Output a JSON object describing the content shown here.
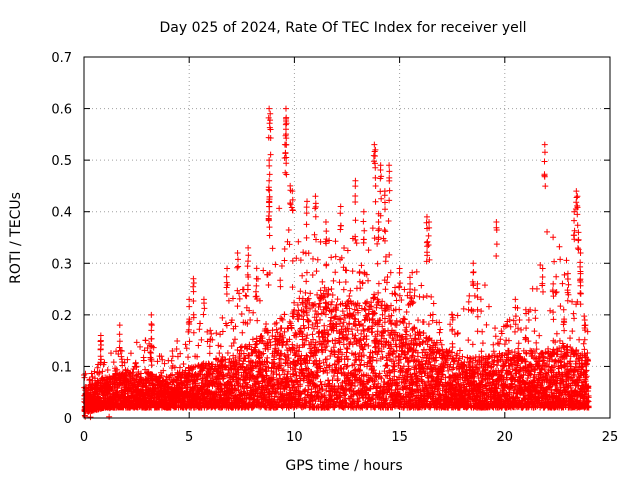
{
  "chart_data": {
    "type": "scatter",
    "title": "Day 025 of 2024, Rate Of TEC Index for receiver yell",
    "xlabel": "GPS time / hours",
    "ylabel": "ROTI / TECUs",
    "xlim": [
      0,
      25
    ],
    "ylim": [
      0,
      0.7
    ],
    "x_ticks": [
      0,
      5,
      10,
      15,
      20,
      25
    ],
    "x_tick_labels": [
      "0",
      "5",
      "10",
      "15",
      "20",
      "25"
    ],
    "y_ticks": [
      0,
      0.1,
      0.2,
      0.3,
      0.4,
      0.5,
      0.6,
      0.7
    ],
    "y_tick_labels": [
      "0",
      "0.1",
      "0.2",
      "0.3",
      "0.4",
      "0.5",
      "0.6",
      "0.7"
    ],
    "grid": true,
    "marker": "plus",
    "marker_color": "#ff0000",
    "series": [
      {
        "name": "ROTI",
        "sample_points": [
          {
            "x": 0.05,
            "y": 0.02
          },
          {
            "x": 0.3,
            "y": 0.06
          },
          {
            "x": 0.5,
            "y": 0.09
          },
          {
            "x": 0.8,
            "y": 0.16
          },
          {
            "x": 0.8,
            "y": 0.15
          },
          {
            "x": 1.2,
            "y": 0.08
          },
          {
            "x": 1.7,
            "y": 0.18
          },
          {
            "x": 1.8,
            "y": 0.13
          },
          {
            "x": 2.5,
            "y": 0.1
          },
          {
            "x": 3.2,
            "y": 0.2
          },
          {
            "x": 3.2,
            "y": 0.17
          },
          {
            "x": 4.2,
            "y": 0.13
          },
          {
            "x": 5.0,
            "y": 0.23
          },
          {
            "x": 5.2,
            "y": 0.27
          },
          {
            "x": 5.7,
            "y": 0.23
          },
          {
            "x": 6.0,
            "y": 0.17
          },
          {
            "x": 6.8,
            "y": 0.29
          },
          {
            "x": 7.3,
            "y": 0.32
          },
          {
            "x": 7.8,
            "y": 0.33
          },
          {
            "x": 8.2,
            "y": 0.27
          },
          {
            "x": 8.8,
            "y": 0.6
          },
          {
            "x": 8.85,
            "y": 0.59
          },
          {
            "x": 8.8,
            "y": 0.5
          },
          {
            "x": 8.8,
            "y": 0.46
          },
          {
            "x": 8.8,
            "y": 0.42
          },
          {
            "x": 8.8,
            "y": 0.41
          },
          {
            "x": 9.6,
            "y": 0.6
          },
          {
            "x": 9.6,
            "y": 0.58
          },
          {
            "x": 9.6,
            "y": 0.56
          },
          {
            "x": 9.55,
            "y": 0.53
          },
          {
            "x": 9.8,
            "y": 0.45
          },
          {
            "x": 9.9,
            "y": 0.44
          },
          {
            "x": 10.6,
            "y": 0.42
          },
          {
            "x": 11.0,
            "y": 0.43
          },
          {
            "x": 11.5,
            "y": 0.38
          },
          {
            "x": 12.2,
            "y": 0.41
          },
          {
            "x": 12.9,
            "y": 0.46
          },
          {
            "x": 13.3,
            "y": 0.4
          },
          {
            "x": 13.8,
            "y": 0.53
          },
          {
            "x": 13.85,
            "y": 0.52
          },
          {
            "x": 14.1,
            "y": 0.49
          },
          {
            "x": 14.5,
            "y": 0.49
          },
          {
            "x": 14.3,
            "y": 0.44
          },
          {
            "x": 14.0,
            "y": 0.38
          },
          {
            "x": 15.0,
            "y": 0.29
          },
          {
            "x": 15.5,
            "y": 0.26
          },
          {
            "x": 16.3,
            "y": 0.39
          },
          {
            "x": 16.4,
            "y": 0.38
          },
          {
            "x": 16.3,
            "y": 0.34
          },
          {
            "x": 17.5,
            "y": 0.2
          },
          {
            "x": 18.5,
            "y": 0.3
          },
          {
            "x": 18.7,
            "y": 0.26
          },
          {
            "x": 19.6,
            "y": 0.38
          },
          {
            "x": 20.5,
            "y": 0.23
          },
          {
            "x": 21.0,
            "y": 0.21
          },
          {
            "x": 21.8,
            "y": 0.29
          },
          {
            "x": 21.9,
            "y": 0.53
          },
          {
            "x": 22.3,
            "y": 0.26
          },
          {
            "x": 22.8,
            "y": 0.21
          },
          {
            "x": 23.0,
            "y": 0.28
          },
          {
            "x": 23.4,
            "y": 0.44
          },
          {
            "x": 23.45,
            "y": 0.43
          },
          {
            "x": 23.3,
            "y": 0.4
          },
          {
            "x": 23.5,
            "y": 0.36
          },
          {
            "x": 23.6,
            "y": 0.32
          },
          {
            "x": 23.6,
            "y": 0.28
          },
          {
            "x": 23.8,
            "y": 0.19
          }
        ],
        "envelope": {
          "x": [
            0,
            1,
            2,
            3,
            4,
            5,
            6,
            7,
            8,
            9,
            10,
            11,
            12,
            13,
            14,
            15,
            16,
            17,
            18,
            19,
            20,
            21,
            22,
            23,
            24
          ],
          "typical_max": [
            0.06,
            0.08,
            0.09,
            0.09,
            0.08,
            0.1,
            0.11,
            0.13,
            0.15,
            0.18,
            0.22,
            0.25,
            0.24,
            0.22,
            0.24,
            0.2,
            0.17,
            0.14,
            0.12,
            0.12,
            0.13,
            0.14,
            0.13,
            0.14,
            0.12
          ],
          "peak": [
            0.1,
            0.16,
            0.18,
            0.2,
            0.14,
            0.27,
            0.23,
            0.32,
            0.33,
            0.6,
            0.45,
            0.43,
            0.42,
            0.46,
            0.53,
            0.29,
            0.39,
            0.2,
            0.3,
            0.38,
            0.23,
            0.29,
            0.53,
            0.44,
            0.19
          ],
          "floor": [
            0.01,
            0.02,
            0.02,
            0.02,
            0.02,
            0.02,
            0.02,
            0.02,
            0.02,
            0.02,
            0.02,
            0.02,
            0.02,
            0.02,
            0.02,
            0.02,
            0.02,
            0.02,
            0.02,
            0.02,
            0.02,
            0.02,
            0.02,
            0.02,
            0.02
          ]
        }
      }
    ]
  }
}
